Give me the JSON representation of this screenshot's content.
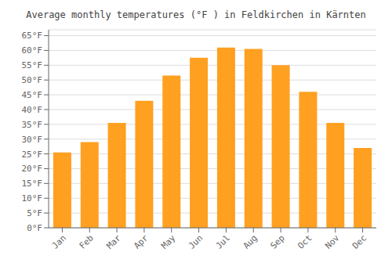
{
  "chart_data": {
    "type": "bar",
    "title": "Average monthly temperatures (°F ) in Feldkirchen in Kärnten",
    "categories": [
      "Jan",
      "Feb",
      "Mar",
      "Apr",
      "May",
      "Jun",
      "Jul",
      "Aug",
      "Sep",
      "Oct",
      "Nov",
      "Dec"
    ],
    "values": [
      25.5,
      29.0,
      35.5,
      43.0,
      51.5,
      57.5,
      61.0,
      60.5,
      55.0,
      46.0,
      35.5,
      27.0
    ],
    "color": "#FFA020",
    "ylim": [
      0,
      67
    ],
    "yticks": [
      {
        "value": 0,
        "label": "0°F"
      },
      {
        "value": 5,
        "label": "5°F"
      },
      {
        "value": 10,
        "label": "10°F"
      },
      {
        "value": 15,
        "label": "15°F"
      },
      {
        "value": 20,
        "label": "20°F"
      },
      {
        "value": 25,
        "label": "25°F"
      },
      {
        "value": 30,
        "label": "30°F"
      },
      {
        "value": 35,
        "label": "35°F"
      },
      {
        "value": 40,
        "label": "40°F"
      },
      {
        "value": 45,
        "label": "45°F"
      },
      {
        "value": 50,
        "label": "50°F"
      },
      {
        "value": 55,
        "label": "55°F"
      },
      {
        "value": 60,
        "label": "60°F"
      },
      {
        "value": 65,
        "label": "65°F"
      }
    ],
    "grid": true
  }
}
